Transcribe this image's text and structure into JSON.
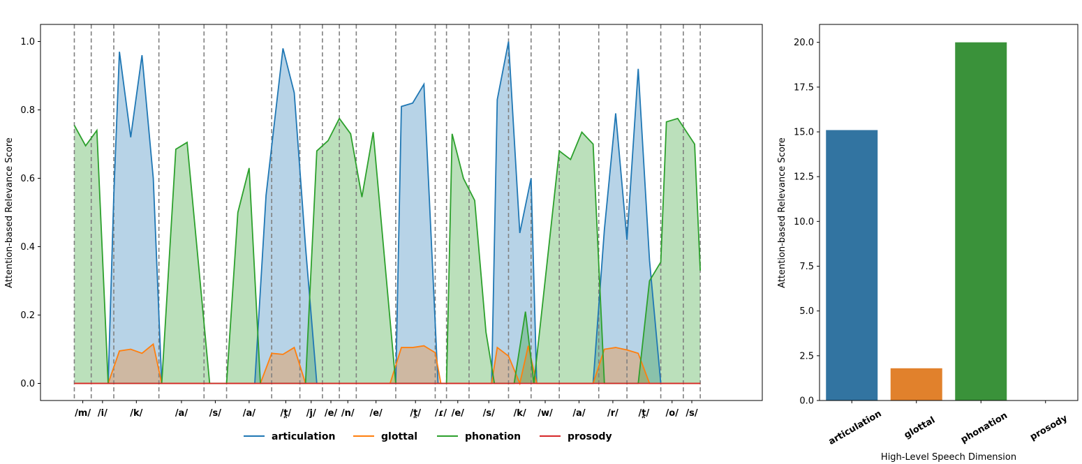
{
  "chart_data": [
    {
      "type": "area",
      "ylabel": "Attention-based Relevance Score",
      "xlabel": "",
      "ylim": [
        -0.05,
        1.05
      ],
      "xlim": [
        -6,
        122
      ],
      "yticks": [
        "0.0",
        "0.2",
        "0.4",
        "0.6",
        "0.8",
        "1.0"
      ],
      "phoneme_labels": [
        "/m/",
        "/i/",
        "/k/",
        "/a/",
        "/s/",
        "/a/",
        "/t̪/",
        "/j/",
        "/e/",
        "/n/",
        "/e/",
        "/t̪/",
        "/ɾ/",
        "/e/",
        "/s/",
        "/k/",
        "/w/",
        "/a/",
        "/r/",
        "/t̪/",
        "/o/",
        "/s/"
      ],
      "boundaries": [
        0,
        3,
        7,
        15,
        23,
        27,
        35,
        40,
        44,
        47,
        50,
        57,
        64,
        66,
        70,
        77,
        81,
        86,
        93,
        98,
        104,
        108,
        111
      ],
      "legend": [
        "articulation",
        "glottal",
        "phonation",
        "prosody"
      ],
      "legend_position": "bottom-center",
      "colors": {
        "articulation": "#1f77b4",
        "glottal": "#ff7f0e",
        "phonation": "#2ca02c",
        "prosody": "#d62728"
      },
      "series": [
        {
          "name": "articulation",
          "points": [
            [
              0,
              0
            ],
            [
              6,
              0
            ],
            [
              7,
              0.55
            ],
            [
              8,
              0.97
            ],
            [
              10,
              0.72
            ],
            [
              12,
              0.96
            ],
            [
              14,
              0.6
            ],
            [
              15.5,
              0
            ],
            [
              32,
              0
            ],
            [
              34,
              0.55
            ],
            [
              37,
              0.98
            ],
            [
              39,
              0.85
            ],
            [
              41,
              0.4
            ],
            [
              43,
              0
            ],
            [
              57,
              0
            ],
            [
              58,
              0.81
            ],
            [
              60,
              0.82
            ],
            [
              62,
              0.875
            ],
            [
              64.5,
              0
            ],
            [
              74,
              0
            ],
            [
              75,
              0.83
            ],
            [
              77,
              1.0
            ],
            [
              79,
              0.44
            ],
            [
              81,
              0.6
            ],
            [
              82,
              0
            ],
            [
              92,
              0
            ],
            [
              94,
              0.45
            ],
            [
              96,
              0.79
            ],
            [
              98,
              0.42
            ],
            [
              100,
              0.92
            ],
            [
              102,
              0.36
            ],
            [
              104,
              0
            ],
            [
              111,
              0
            ]
          ]
        },
        {
          "name": "glottal",
          "points": [
            [
              0,
              0
            ],
            [
              6,
              0
            ],
            [
              8,
              0.095
            ],
            [
              10,
              0.1
            ],
            [
              12,
              0.088
            ],
            [
              14,
              0.115
            ],
            [
              15.5,
              0
            ],
            [
              33,
              0
            ],
            [
              35,
              0.088
            ],
            [
              37,
              0.085
            ],
            [
              39,
              0.105
            ],
            [
              41,
              0
            ],
            [
              56,
              0
            ],
            [
              58,
              0.105
            ],
            [
              60,
              0.105
            ],
            [
              62,
              0.11
            ],
            [
              64,
              0.09
            ],
            [
              65,
              0
            ],
            [
              74,
              0
            ],
            [
              75,
              0.105
            ],
            [
              77,
              0.08
            ],
            [
              79,
              0
            ],
            [
              80.5,
              0.11
            ],
            [
              82,
              0
            ],
            [
              92,
              0
            ],
            [
              94,
              0.1
            ],
            [
              96,
              0.105
            ],
            [
              98,
              0.098
            ],
            [
              100,
              0.088
            ],
            [
              102,
              0
            ],
            [
              111,
              0
            ]
          ]
        },
        {
          "name": "phonation",
          "points": [
            [
              0,
              0.755
            ],
            [
              2,
              0.695
            ],
            [
              4,
              0.74
            ],
            [
              6,
              0
            ],
            [
              15.5,
              0
            ],
            [
              18,
              0.685
            ],
            [
              20,
              0.705
            ],
            [
              24,
              0
            ],
            [
              27,
              0
            ],
            [
              29,
              0.5
            ],
            [
              31,
              0.63
            ],
            [
              33,
              0
            ],
            [
              41,
              0
            ],
            [
              43,
              0.68
            ],
            [
              45,
              0.71
            ],
            [
              47,
              0.775
            ],
            [
              49,
              0.73
            ],
            [
              51,
              0.545
            ],
            [
              53,
              0.735
            ],
            [
              57,
              0
            ],
            [
              66,
              0
            ],
            [
              67,
              0.73
            ],
            [
              69,
              0.6
            ],
            [
              71,
              0.535
            ],
            [
              73,
              0.15
            ],
            [
              74.5,
              0
            ],
            [
              78,
              0
            ],
            [
              80,
              0.21
            ],
            [
              81.5,
              0
            ],
            [
              86,
              0.68
            ],
            [
              88,
              0.655
            ],
            [
              90,
              0.735
            ],
            [
              92,
              0.7
            ],
            [
              94,
              0
            ],
            [
              100,
              0
            ],
            [
              102,
              0.3
            ],
            [
              104,
              0.355
            ],
            [
              105,
              0.765
            ],
            [
              107,
              0.775
            ],
            [
              110,
              0.7
            ],
            [
              111,
              0.33
            ]
          ]
        },
        {
          "name": "prosody",
          "points": [
            [
              0,
              0
            ],
            [
              111,
              0
            ]
          ]
        }
      ]
    },
    {
      "type": "bar",
      "categories": [
        "articulation",
        "glottal",
        "phonation",
        "prosody"
      ],
      "values": [
        15.1,
        1.8,
        20.0,
        0.0
      ],
      "colors": [
        "#3274a1",
        "#e1812c",
        "#3a923a",
        "#c03d3e"
      ],
      "xlabel": "High-Level Speech Dimension",
      "ylabel": "Attention-based Relevance Score",
      "ylim": [
        0,
        21
      ],
      "yticks": [
        "0.0",
        "2.5",
        "5.0",
        "7.5",
        "10.0",
        "12.5",
        "15.0",
        "17.5",
        "20.0"
      ],
      "ytick_values": [
        0,
        2.5,
        5,
        7.5,
        10,
        12.5,
        15,
        17.5,
        20
      ]
    }
  ]
}
